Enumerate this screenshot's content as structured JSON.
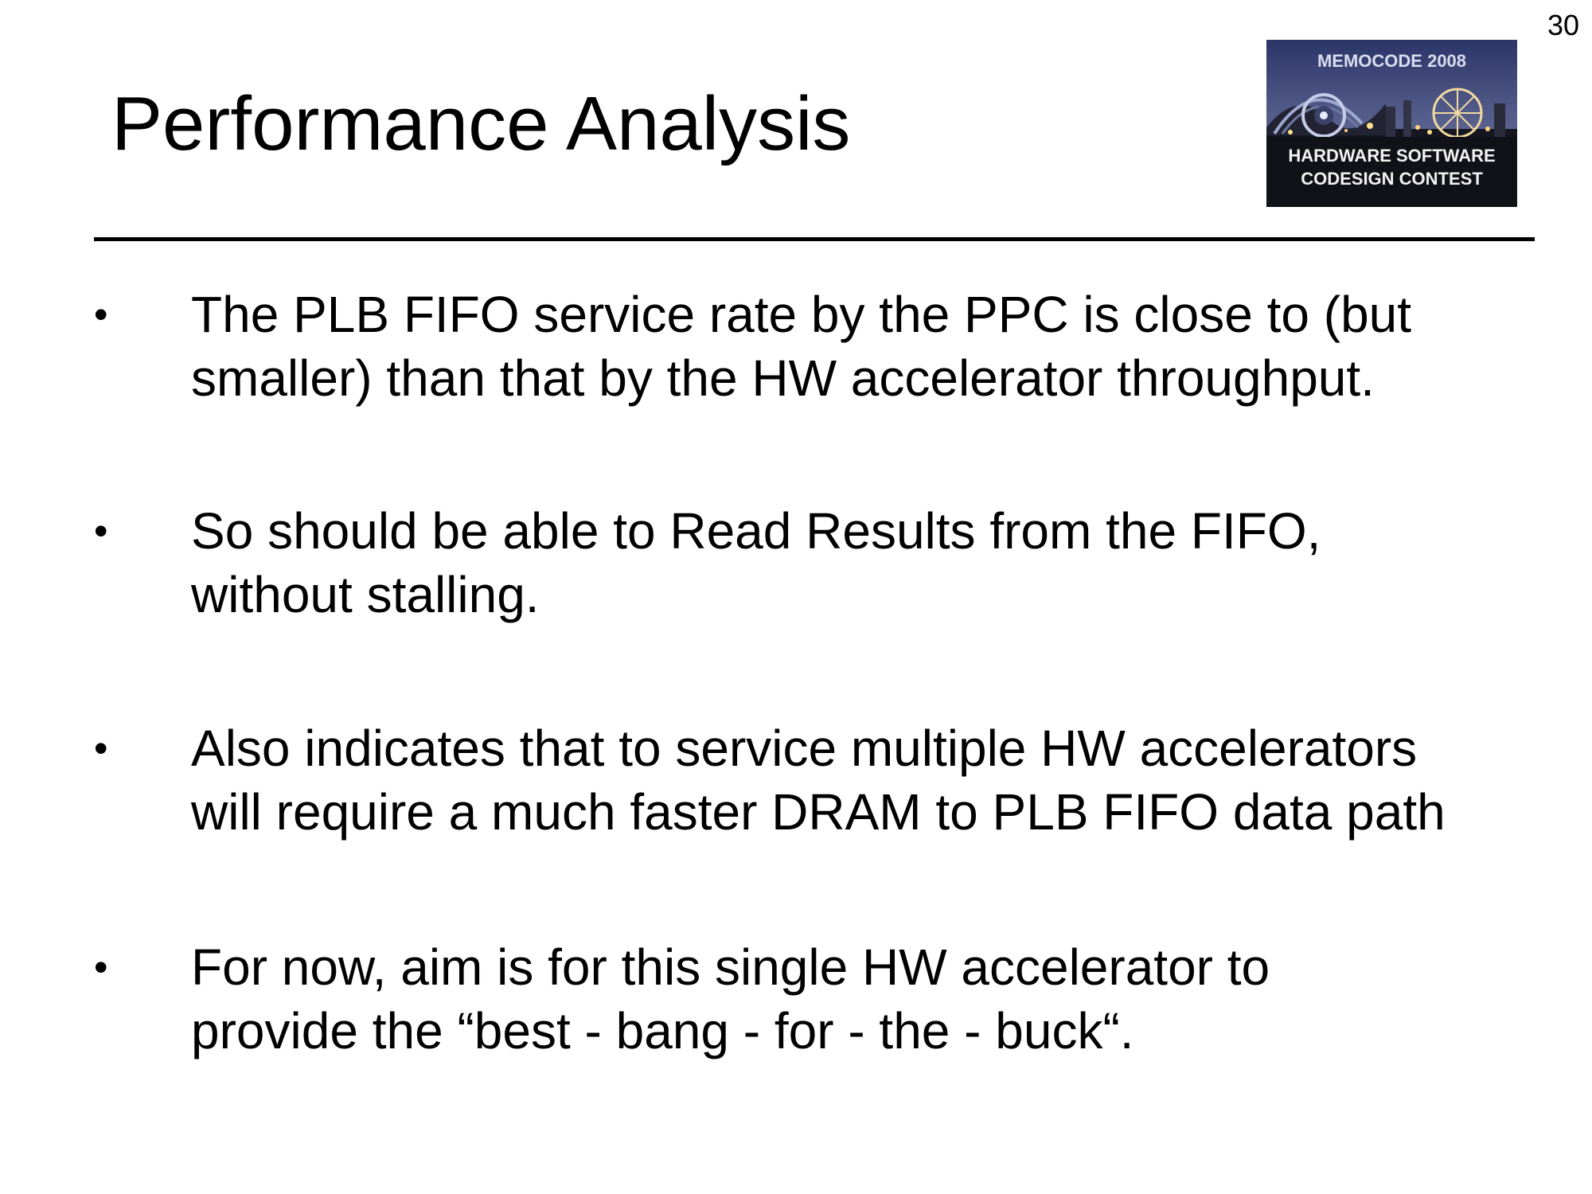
{
  "slide": {
    "page_number": "30",
    "title": "Performance Analysis",
    "logo": {
      "top_text": "MEMOCODE 2008",
      "bottom_line_1": "HARDWARE SOFTWARE",
      "bottom_line_2": "CODESIGN CONTEST"
    },
    "bullet_symbol": "•",
    "bullets": [
      {
        "line_1": "The PLB FIFO service rate by the PPC is close to (but",
        "line_2": "smaller) than that by the HW accelerator throughput."
      },
      {
        "line_1": "So should be able to Read Results from the FIFO,",
        "line_2": "without stalling."
      },
      {
        "line_1": "Also indicates that to service multiple HW accelerators",
        "line_2": "will require a much faster DRAM to PLB FIFO data path"
      },
      {
        "line_1": "For now, aim is for this single HW accelerator to",
        "line_2": "provide the “best - bang - for - the - buck“."
      }
    ]
  }
}
